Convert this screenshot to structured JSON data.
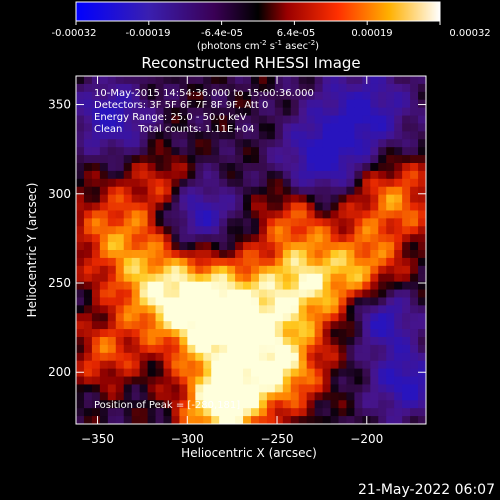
{
  "colorbar": {
    "ticks": [
      "-0.00032",
      "-0.00019",
      "-6.4e-05",
      "6.4e-05",
      "0.00019",
      "0.00032"
    ],
    "units_main": "(photons cm",
    "units_sup1": "-2",
    "units_mid": " s",
    "units_sup2": "-1",
    "units_mid2": " asec",
    "units_sup3": "-2",
    "units_end": ")"
  },
  "chart_data": {
    "type": "heatmap",
    "title": "Reconstructed RHESSI Image",
    "xlabel": "Heliocentric X (arcsec)",
    "ylabel": "Heliocentric Y (arcsec)",
    "xlim": [
      -362,
      -167
    ],
    "ylim": [
      171,
      366
    ],
    "xticks": [
      -350,
      -300,
      -250,
      -200
    ],
    "yticks": [
      200,
      250,
      300,
      350
    ],
    "xtick_labels": [
      "−350",
      "−300",
      "−250",
      "−200"
    ],
    "ytick_labels": [
      "200",
      "250",
      "300",
      "350"
    ],
    "colormap": "rhessi-blue-purple-red-yellow-white",
    "value_range": [
      -0.00032,
      0.00032
    ],
    "peak_position": "Position of Peak = [-280,181]",
    "annotations": [
      "10-May-2015 14:54:36.000 to 15:00:36.000",
      "Detectors: 3F 5F 6F 7F 8F 9F, Att 0",
      "Energy Range: 25.0 - 50.0 keV",
      "Clean     Total counts: 1.11E+04"
    ]
  },
  "footer": {
    "timestamp": "21-May-2022 06:07"
  }
}
